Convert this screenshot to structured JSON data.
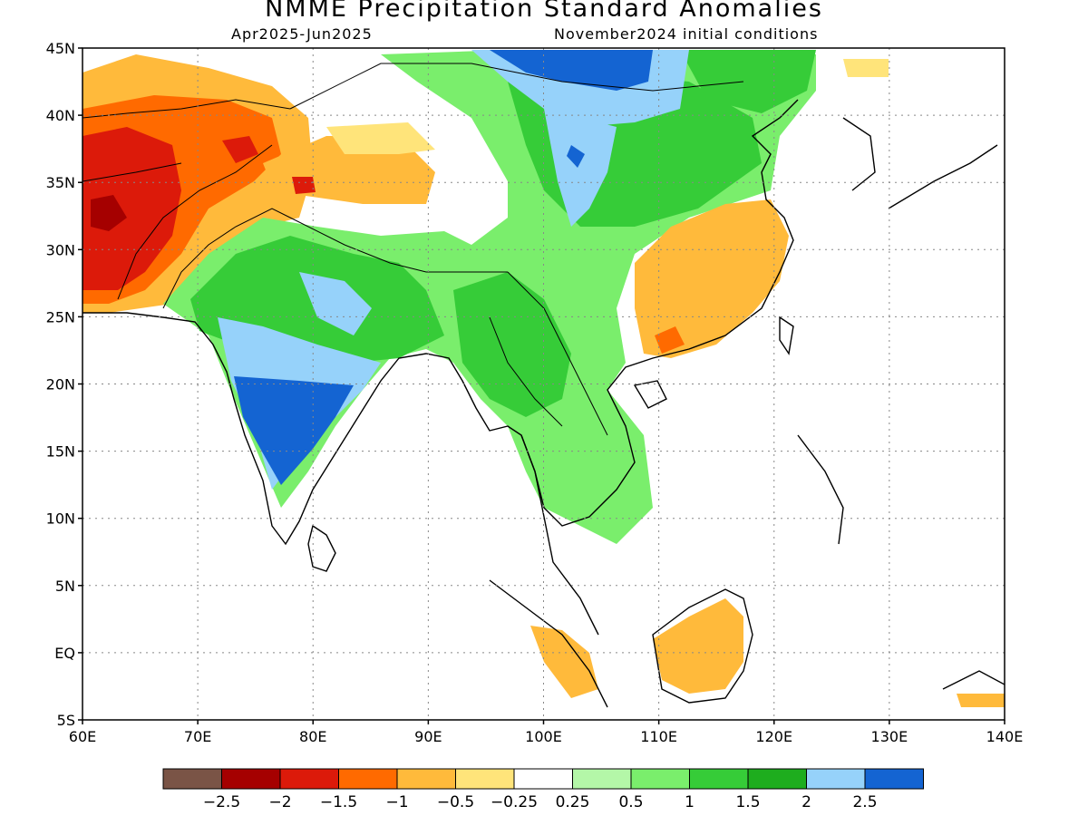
{
  "title": "NMME Precipitation Standard Anomalies",
  "period": "Apr2025-Jun2025",
  "initial_conditions": "November2024 initial conditions",
  "lat_labels": [
    "45N",
    "40N",
    "35N",
    "30N",
    "25N",
    "20N",
    "15N",
    "10N",
    "5N",
    "EQ",
    "5S"
  ],
  "lon_labels": [
    "60E",
    "70E",
    "80E",
    "90E",
    "100E",
    "110E",
    "120E",
    "130E",
    "140E"
  ],
  "colorbar": {
    "colors": [
      "#7a5446",
      "#a50000",
      "#dc1a0a",
      "#ff6a00",
      "#ffba3b",
      "#ffe47a",
      "#ffffff",
      "#b4f7a8",
      "#7aee6c",
      "#36cc38",
      "#1ead1e",
      "#96d2fa",
      "#1464d2"
    ],
    "labels": [
      "-2.5",
      "-2",
      "-1.5",
      "-1",
      "-0.5",
      "-0.25",
      "0.25",
      "0.5",
      "1",
      "1.5",
      "2",
      "2.5"
    ]
  },
  "map_extent": {
    "lon": [
      60,
      140
    ],
    "lat": [
      -5,
      45
    ]
  }
}
